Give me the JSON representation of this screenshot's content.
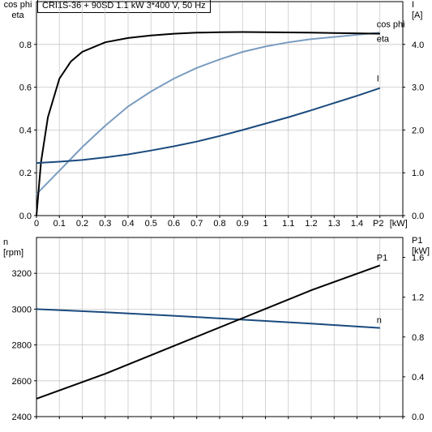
{
  "title": "CRI1S-36 + 90SD   1.1 kW   3*400 V, 50 Hz",
  "chart_data": [
    {
      "type": "line",
      "panel": "top",
      "xlabel": "P2",
      "xunit": "[kW]",
      "xlim": [
        0,
        1.6
      ],
      "xticks": [
        "0",
        "0.1",
        "0.2",
        "0.3",
        "0.4",
        "0.5",
        "0.6",
        "0.7",
        "0.8",
        "0.9",
        "1",
        "1.1",
        "1.2",
        "1.3",
        "1.4"
      ],
      "ylabel_left": [
        "cos phi",
        "eta"
      ],
      "ylim_left": [
        0,
        1.0
      ],
      "yticks_left": [
        "0.0",
        "0.2",
        "0.4",
        "0.6",
        "0.8"
      ],
      "ylabel_right": "I",
      "yunit_right": "[A]",
      "ylim_right": [
        0,
        5.0
      ],
      "yticks_right": [
        "0.0",
        "1.0",
        "2.0",
        "3.0",
        "4.0"
      ],
      "grid": true,
      "series": [
        {
          "name": "cos phi",
          "axis": "left",
          "color": "#7a9cc0",
          "x": [
            0,
            0.1,
            0.2,
            0.3,
            0.4,
            0.5,
            0.6,
            0.7,
            0.8,
            0.9,
            1.0,
            1.1,
            1.2,
            1.3,
            1.4,
            1.5
          ],
          "y": [
            0.1,
            0.21,
            0.32,
            0.42,
            0.51,
            0.58,
            0.64,
            0.69,
            0.73,
            0.765,
            0.79,
            0.81,
            0.825,
            0.835,
            0.845,
            0.855
          ]
        },
        {
          "name": "eta",
          "axis": "left",
          "color": "#000000",
          "x": [
            0,
            0.02,
            0.05,
            0.1,
            0.15,
            0.2,
            0.3,
            0.4,
            0.5,
            0.6,
            0.7,
            0.8,
            0.9,
            1.0,
            1.1,
            1.2,
            1.3,
            1.4,
            1.5
          ],
          "y": [
            0.0,
            0.25,
            0.46,
            0.64,
            0.72,
            0.765,
            0.81,
            0.83,
            0.842,
            0.85,
            0.855,
            0.857,
            0.858,
            0.857,
            0.856,
            0.855,
            0.853,
            0.852,
            0.85
          ]
        },
        {
          "name": "I",
          "axis": "right",
          "color": "#1a4a7e",
          "x": [
            0,
            0.1,
            0.2,
            0.3,
            0.4,
            0.5,
            0.6,
            0.7,
            0.8,
            0.9,
            1.0,
            1.1,
            1.2,
            1.3,
            1.4,
            1.5
          ],
          "y": [
            1.23,
            1.26,
            1.3,
            1.36,
            1.43,
            1.52,
            1.62,
            1.73,
            1.86,
            2.0,
            2.15,
            2.3,
            2.46,
            2.63,
            2.8,
            2.98
          ]
        }
      ]
    },
    {
      "type": "line",
      "panel": "bottom",
      "xlim": [
        0,
        1.6
      ],
      "ylabel_left": "n",
      "yunit_left": "[rpm]",
      "ylim_left": [
        2400,
        3400
      ],
      "yticks_left": [
        "2400",
        "2600",
        "2800",
        "3000",
        "3200"
      ],
      "ylabel_right": "P1",
      "yunit_right": "[kW]",
      "ylim_right": [
        0,
        1.8
      ],
      "yticks_right": [
        "0.0",
        "0.4",
        "0.8",
        "1.2",
        "1.6"
      ],
      "grid": true,
      "series": [
        {
          "name": "n",
          "axis": "left",
          "color": "#1a4a7e",
          "x": [
            0,
            0.3,
            0.6,
            0.9,
            1.2,
            1.5
          ],
          "y": [
            3000,
            2983,
            2963,
            2941,
            2919,
            2895
          ]
        },
        {
          "name": "P1",
          "axis": "right",
          "color": "#000000",
          "x": [
            0,
            0.3,
            0.6,
            0.9,
            1.2,
            1.5
          ],
          "y": [
            0.18,
            0.43,
            0.71,
            0.99,
            1.27,
            1.52
          ]
        }
      ]
    }
  ]
}
